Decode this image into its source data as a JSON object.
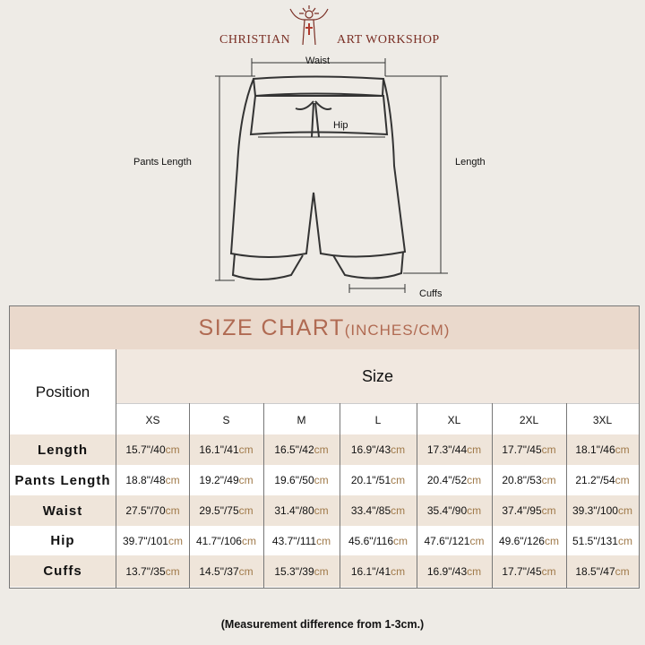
{
  "brand": {
    "left": "CHRISTIAN",
    "right": "ART WORKSHOP",
    "color": "#7a2f25"
  },
  "diagram": {
    "waist": "Waist",
    "hip": "Hip",
    "pants_length": "Pants Length",
    "length": "Length",
    "cuffs": "Cuffs"
  },
  "table": {
    "title": "SIZE CHART",
    "title_units": "(INCHES/CM)",
    "position_header": "Position",
    "size_header": "Size",
    "sizes": [
      "XS",
      "S",
      "M",
      "L",
      "XL",
      "2XL",
      "3XL"
    ],
    "rows": [
      {
        "label": "Length",
        "values": [
          [
            "15.7\"/40",
            "cm"
          ],
          [
            "16.1\"/41",
            "cm"
          ],
          [
            "16.5\"/42",
            "cm"
          ],
          [
            "16.9\"/43",
            "cm"
          ],
          [
            "17.3\"/44",
            "cm"
          ],
          [
            "17.7\"/45",
            "cm"
          ],
          [
            "18.1\"/46",
            "cm"
          ]
        ]
      },
      {
        "label": "Pants Length",
        "values": [
          [
            "18.8\"/48",
            "cm"
          ],
          [
            "19.2\"/49",
            "cm"
          ],
          [
            "19.6\"/50",
            "cm"
          ],
          [
            "20.1\"/51",
            "cm"
          ],
          [
            "20.4\"/52",
            "cm"
          ],
          [
            "20.8\"/53",
            "cm"
          ],
          [
            "21.2\"/54",
            "cm"
          ]
        ]
      },
      {
        "label": "Waist",
        "values": [
          [
            "27.5\"/70",
            "cm"
          ],
          [
            "29.5\"/75",
            "cm"
          ],
          [
            "31.4\"/80",
            "cm"
          ],
          [
            "33.4\"/85",
            "cm"
          ],
          [
            "35.4\"/90",
            "cm"
          ],
          [
            "37.4\"/95",
            "cm"
          ],
          [
            "39.3\"/100",
            "cm"
          ]
        ]
      },
      {
        "label": "Hip",
        "values": [
          [
            "39.7\"/101",
            "cm"
          ],
          [
            "41.7\"/106",
            "cm"
          ],
          [
            "43.7\"/111",
            "cm"
          ],
          [
            "45.6\"/116",
            "cm"
          ],
          [
            "47.6\"/121",
            "cm"
          ],
          [
            "49.6\"/126",
            "cm"
          ],
          [
            "51.5\"/131",
            "cm"
          ]
        ]
      },
      {
        "label": "Cuffs",
        "values": [
          [
            "13.7\"/35",
            "cm"
          ],
          [
            "14.5\"/37",
            "cm"
          ],
          [
            "15.3\"/39",
            "cm"
          ],
          [
            "16.1\"/41",
            "cm"
          ],
          [
            "16.9\"/43",
            "cm"
          ],
          [
            "17.7\"/45",
            "cm"
          ],
          [
            "18.5\"/47",
            "cm"
          ]
        ]
      }
    ],
    "colors": {
      "title_bg": "#ead9cc",
      "title_text": "#b06a52",
      "row_tan": "#efe5da",
      "cm_text": "#a07a4a"
    }
  },
  "note": "(Measurement difference from 1-3cm.)"
}
